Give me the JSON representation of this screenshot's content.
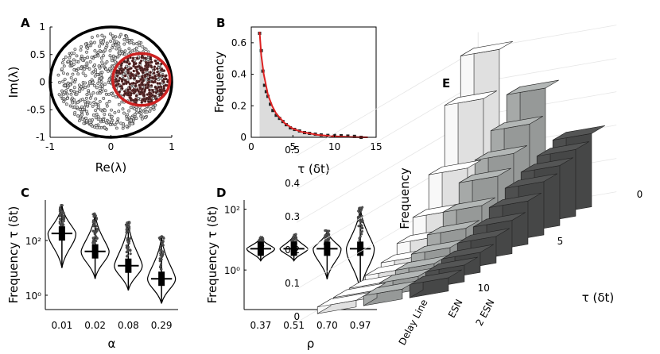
{
  "chart_data": [
    {
      "panel": "A",
      "type": "scatter",
      "xlabel": "Re(λ)",
      "ylabel": "Im(λ)",
      "xlim": [
        -1,
        1
      ],
      "ylim": [
        -1,
        1
      ],
      "xticks": [
        "-1",
        "0",
        "1"
      ],
      "yticks": [
        "-1",
        "-0.5",
        "0",
        "0.5",
        "1"
      ],
      "series": [
        {
          "name": "black unit circle",
          "center": [
            0,
            0
          ],
          "radius": 1,
          "color": "#000000"
        },
        {
          "name": "red circle",
          "center": [
            0.5,
            0.05
          ],
          "radius": 0.47,
          "color": "#cc2222"
        },
        {
          "name": "grey eigenvalues",
          "region_center": [
            0,
            0
          ],
          "region_radius": 0.88
        },
        {
          "name": "dark eigenvalues",
          "region_center": [
            0.5,
            0.05
          ],
          "region_radius": 0.44
        }
      ]
    },
    {
      "panel": "B",
      "type": "bar",
      "xlabel": "τ (δt)",
      "ylabel": "Frequency",
      "xlim": [
        0,
        15
      ],
      "ylim": [
        0,
        0.7
      ],
      "xticks": [
        "0",
        "5",
        "10",
        "15"
      ],
      "yticks": [
        "0",
        "0.2",
        "0.4",
        "0.6"
      ],
      "x": [
        1.0,
        1.2,
        1.4,
        1.6,
        1.8,
        2.0,
        2.3,
        2.6,
        3.0,
        3.4,
        3.8,
        4.2,
        4.7,
        5.2,
        5.8,
        6.4,
        7.0,
        7.7,
        8.4,
        9.2,
        10.0,
        10.8,
        11.6,
        12.4,
        13.2
      ],
      "values": [
        0.66,
        0.55,
        0.42,
        0.33,
        0.29,
        0.26,
        0.21,
        0.17,
        0.14,
        0.12,
        0.1,
        0.08,
        0.06,
        0.05,
        0.04,
        0.03,
        0.025,
        0.02,
        0.015,
        0.012,
        0.012,
        0.01,
        0.008,
        0.006,
        0.0
      ],
      "fit": {
        "x": [
          1.0,
          1.2,
          1.5,
          2.0,
          2.5,
          3.0,
          4.0,
          5.0,
          6.0,
          8.0,
          10.0,
          12.0,
          14.0
        ],
        "y": [
          0.67,
          0.52,
          0.4,
          0.27,
          0.2,
          0.15,
          0.09,
          0.055,
          0.035,
          0.015,
          0.006,
          0.002,
          0.0
        ]
      }
    },
    {
      "panel": "C",
      "type": "violin",
      "xlabel": "α",
      "ylabel": "Frequency τ (δt)",
      "yscale": "log",
      "ylim": [
        0.3,
        3000
      ],
      "yticks": [
        "10⁰",
        "10²"
      ],
      "categories": [
        "0.01",
        "0.02",
        "0.08",
        "0.29"
      ],
      "medians": [
        180,
        40,
        12,
        4
      ],
      "ranges": [
        [
          10,
          2000
        ],
        [
          4,
          1000
        ],
        [
          1.5,
          500
        ],
        [
          0.5,
          150
        ]
      ]
    },
    {
      "panel": "D",
      "type": "violin",
      "xlabel": "ρ",
      "ylabel": "Frequency τ (δt)",
      "yscale": "log",
      "ylim": [
        0.05,
        200
      ],
      "yticks": [
        "10⁰",
        "10²"
      ],
      "categories": [
        "0.37",
        "0.51",
        "0.70",
        "0.97"
      ],
      "medians": [
        5,
        5,
        5,
        5
      ],
      "ranges": [
        [
          2,
          12
        ],
        [
          2,
          15
        ],
        [
          0.5,
          20
        ],
        [
          0.2,
          120
        ]
      ]
    },
    {
      "panel": "E",
      "type": "bar3d",
      "xlabel": "τ (δt)",
      "zlabel": "Frequency",
      "zlim": [
        0,
        0.5
      ],
      "zticks": [
        "0",
        "0.1",
        "0.2",
        "0.3",
        "0.4",
        "0.5"
      ],
      "tauticks": [
        "0",
        "5",
        "10"
      ],
      "tau": [
        1,
        2,
        3,
        4,
        5,
        6,
        7,
        8,
        9,
        10
      ],
      "series": [
        {
          "name": "Delay Line",
          "color": "#f3f3f3",
          "values": [
            0.52,
            0.4,
            0.22,
            0.12,
            0.07,
            0.04,
            0.03,
            0.02,
            0.02,
            0.02
          ]
        },
        {
          "name": "ESN",
          "color": "#a3a6a5",
          "values": [
            0.38,
            0.3,
            0.24,
            0.2,
            0.14,
            0.1,
            0.07,
            0.05,
            0.04,
            0.03
          ]
        },
        {
          "name": "2 ESN",
          "color": "#4c4d4d",
          "values": [
            0.22,
            0.2,
            0.18,
            0.16,
            0.13,
            0.1,
            0.08,
            0.06,
            0.05,
            0.04
          ]
        }
      ]
    }
  ],
  "panels": {
    "a": "A",
    "b": "B",
    "c": "C",
    "d": "D",
    "e": "E"
  }
}
